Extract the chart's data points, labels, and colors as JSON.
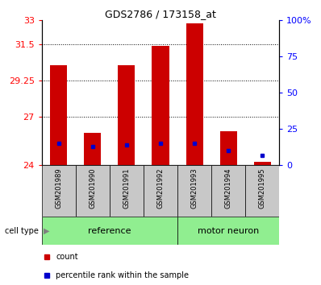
{
  "title": "GDS2786 / 173158_at",
  "samples": [
    "GSM201989",
    "GSM201990",
    "GSM201991",
    "GSM201992",
    "GSM201993",
    "GSM201994",
    "GSM201995"
  ],
  "count_values": [
    30.2,
    26.0,
    30.2,
    31.4,
    32.8,
    26.1,
    24.2
  ],
  "percentile_values": [
    15,
    13,
    14,
    15,
    15,
    10,
    7
  ],
  "ylim_left": [
    24,
    33
  ],
  "ylim_right": [
    0,
    100
  ],
  "yticks_left": [
    24,
    27,
    29.25,
    31.5,
    33
  ],
  "yticks_right": [
    0,
    25,
    50,
    75,
    100
  ],
  "cell_type_label": "cell type",
  "bar_color": "#cc0000",
  "percentile_color": "#0000cc",
  "background_color": "#ffffff",
  "xlabel_bg": "#c8c8c8",
  "group_bg": "#90ee90",
  "legend_items": [
    "count",
    "percentile rank within the sample"
  ],
  "base_value": 24,
  "ref_group": [
    0,
    1,
    2,
    3
  ],
  "motor_group": [
    4,
    5,
    6
  ]
}
